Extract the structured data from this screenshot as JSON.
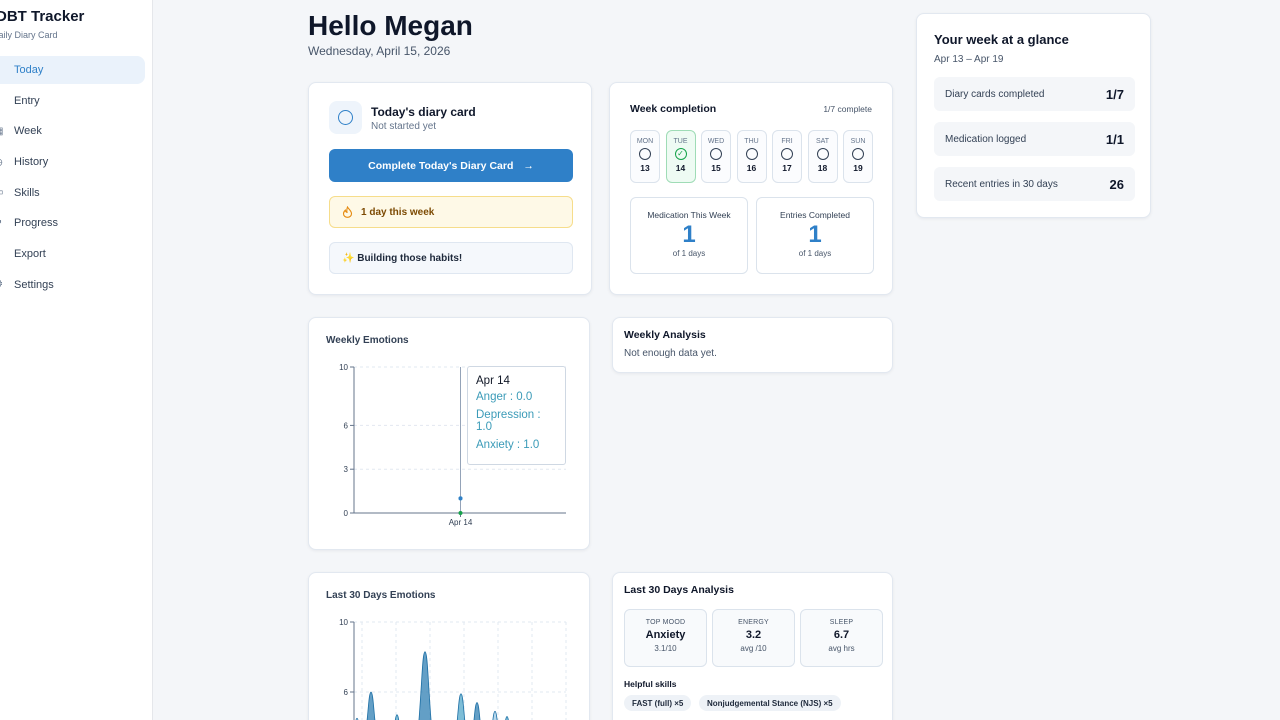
{
  "app": {
    "title": "DBT Tracker",
    "subtitle": "Daily Diary Card"
  },
  "nav": [
    {
      "label": "Today",
      "icon": "home-icon",
      "active": true
    },
    {
      "label": "Entry",
      "icon": "document-icon",
      "active": false
    },
    {
      "label": "Week",
      "icon": "calendar-icon",
      "active": false
    },
    {
      "label": "History",
      "icon": "clock-icon",
      "active": false
    },
    {
      "label": "Skills",
      "icon": "book-icon",
      "active": false
    },
    {
      "label": "Progress",
      "icon": "trend-icon",
      "active": false
    },
    {
      "label": "Export",
      "icon": "share-icon",
      "active": false
    },
    {
      "label": "Settings",
      "icon": "gear-icon",
      "active": false
    }
  ],
  "header": {
    "greeting": "Hello Megan",
    "date": "Wednesday, April 15, 2026"
  },
  "diary": {
    "title": "Today's diary card",
    "status": "Not started yet",
    "button": "Complete Today's Diary Card",
    "streak": "1 day this week",
    "habit": "✨ Building those habits!"
  },
  "week": {
    "title": "Week completion",
    "count": "1/7 complete",
    "days": [
      {
        "name": "MON",
        "num": "13",
        "done": false
      },
      {
        "name": "TUE",
        "num": "14",
        "done": true
      },
      {
        "name": "WED",
        "num": "15",
        "done": false
      },
      {
        "name": "THU",
        "num": "16",
        "done": false
      },
      {
        "name": "FRI",
        "num": "17",
        "done": false
      },
      {
        "name": "SAT",
        "num": "18",
        "done": false
      },
      {
        "name": "SUN",
        "num": "19",
        "done": false
      }
    ],
    "medication": {
      "label": "Medication This Week",
      "value": "1",
      "sub": "of 1 days"
    },
    "entries": {
      "label": "Entries Completed",
      "value": "1",
      "sub": "of 1 days"
    }
  },
  "glance": {
    "title": "Your week at a glance",
    "range": "Apr 13 – Apr 19",
    "rows": [
      {
        "label": "Diary cards completed",
        "value": "1/7"
      },
      {
        "label": "Medication logged",
        "value": "1/1"
      },
      {
        "label": "Recent entries in 30 days",
        "value": "26"
      }
    ]
  },
  "weekly_emotions": {
    "title": "Weekly Emotions",
    "tooltip": {
      "date": "Apr 14",
      "rows": [
        "Anger : 0.0",
        "Depression : 1.0",
        "Anxiety : 1.0"
      ]
    }
  },
  "weekly_analysis": {
    "title": "Weekly Analysis",
    "text": "Not enough data yet."
  },
  "monthly_emotions": {
    "title": "Last 30 Days Emotions"
  },
  "monthly_analysis": {
    "title": "Last 30 Days Analysis",
    "stats": [
      {
        "label": "TOP MOOD",
        "value": "Anxiety",
        "sub": "3.1/10"
      },
      {
        "label": "ENERGY",
        "value": "3.2",
        "sub": "avg /10"
      },
      {
        "label": "SLEEP",
        "value": "6.7",
        "sub": "avg hrs"
      }
    ],
    "skills_title": "Helpful skills",
    "skills": [
      "FAST (full) ×5",
      "Nonjudgemental Stance (NJS) ×5"
    ]
  },
  "chart_data": [
    {
      "type": "line",
      "title": "Weekly Emotions",
      "x": [
        "Apr 14"
      ],
      "yticks": [
        0,
        3,
        6,
        10
      ],
      "ylim": [
        0,
        10
      ],
      "series": [
        {
          "name": "Anger",
          "values": [
            0.0
          ]
        },
        {
          "name": "Depression",
          "values": [
            1.0
          ]
        },
        {
          "name": "Anxiety",
          "values": [
            1.0
          ]
        }
      ]
    },
    {
      "type": "area",
      "title": "Last 30 Days Emotions",
      "yticks": [
        6,
        10
      ],
      "ylim": [
        0,
        10
      ],
      "peaks": [
        4.5,
        6.0,
        4.7,
        8.3,
        5.9,
        5.4,
        4.9,
        4.6,
        3.8
      ]
    }
  ],
  "colors": {
    "accent": "#2f80c8",
    "success": "#16a34a",
    "area_dark": "#2f7fb3",
    "area_mid": "#52a7c9",
    "area_light": "#9fcbe6"
  }
}
